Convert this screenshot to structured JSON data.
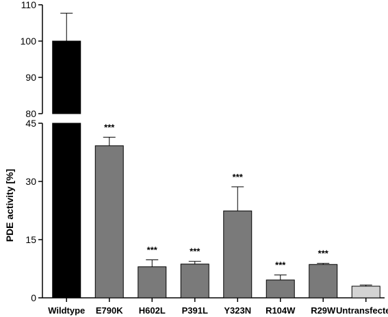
{
  "chart_data": {
    "type": "bar",
    "ylabel": "PDE activity [%]",
    "y_axis_break": true,
    "upper_segment": {
      "ylim": [
        80,
        110
      ],
      "ticks": [
        80,
        90,
        100,
        110
      ]
    },
    "lower_segment": {
      "ylim": [
        0,
        45
      ],
      "ticks": [
        0,
        15,
        30,
        45
      ]
    },
    "categories": [
      "Wildtype",
      "E790K",
      "H602L",
      "P391L",
      "Y323N",
      "R104W",
      "R29W",
      "Untransfected"
    ],
    "values": [
      100,
      39.2,
      8.0,
      8.7,
      22.4,
      4.6,
      8.6,
      3.0
    ],
    "errors": [
      7.7,
      2.2,
      1.8,
      0.7,
      6.2,
      1.3,
      0.3,
      0.3
    ],
    "significance": [
      "",
      "***",
      "***",
      "***",
      "***",
      "***",
      "***",
      ""
    ],
    "colors": [
      "#000000",
      "#7a7a7a",
      "#7a7a7a",
      "#7a7a7a",
      "#7a7a7a",
      "#7a7a7a",
      "#7a7a7a",
      "#d3d3d3"
    ],
    "grid": false,
    "legend": "none"
  }
}
